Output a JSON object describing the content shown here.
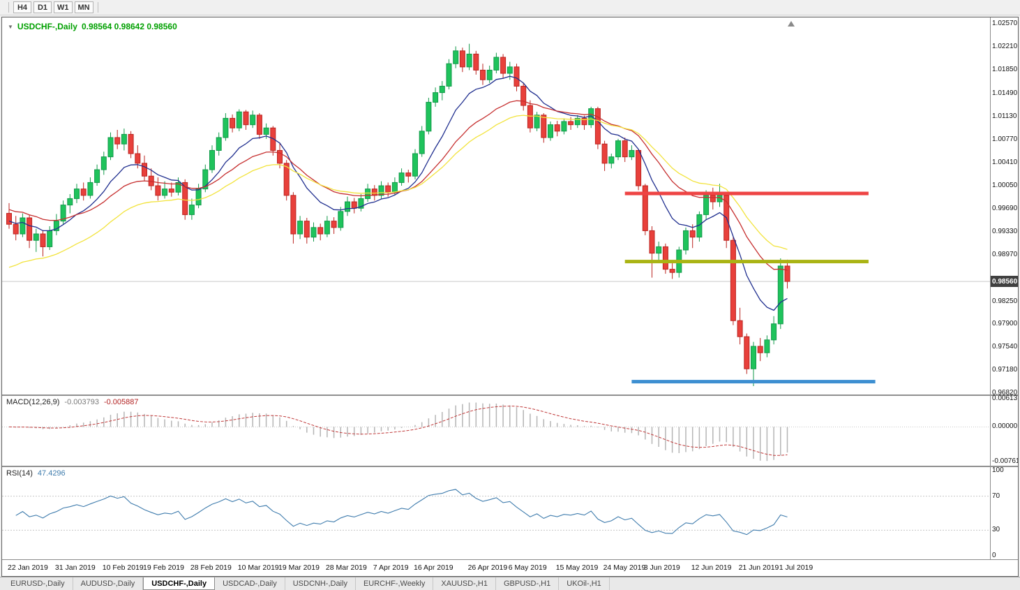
{
  "toolbar": {
    "timeframes": [
      {
        "label": "H4"
      },
      {
        "label": "D1"
      },
      {
        "label": "W1"
      },
      {
        "label": "MN"
      }
    ]
  },
  "chart": {
    "title": {
      "symbol": "USDCHF-,Daily",
      "values": "0.98564 0.98642 0.98560"
    },
    "current_price": "0.98560",
    "price_axis": {
      "max": 1.0267,
      "min": 0.968,
      "labels": [
        "1.02570",
        "1.02210",
        "1.01850",
        "1.01490",
        "1.01130",
        "1.00770",
        "1.00410",
        "1.00050",
        "0.99690",
        "0.99330",
        "0.98970",
        "0.98250",
        "0.97900",
        "0.97540",
        "0.97180",
        "0.96820"
      ]
    },
    "colors": {
      "bull": "#1fc35c",
      "bull_border": "#12994a",
      "bear": "#e8403b",
      "bear_border": "#bb2420",
      "current_price_line": "#c9c9c9"
    },
    "moving_averages": [
      {
        "name": "ma-fast-line",
        "period": 10,
        "seed": 0.995,
        "color": "#202f8f"
      },
      {
        "name": "ma-mid-line",
        "period": 21,
        "seed": 0.9968,
        "color": "#c62f2f"
      },
      {
        "name": "ma-slow-line",
        "period": 30,
        "seed": 0.9878,
        "color": "#f2e33c"
      }
    ],
    "hlines": [
      {
        "name": "resistance-line-red",
        "price": 0.9993,
        "from": 91,
        "to": 127,
        "color": "#ee4444"
      },
      {
        "name": "support-line-olive",
        "price": 0.9887,
        "from": 91,
        "to": 127,
        "color": "#aab414"
      },
      {
        "name": "support-line-blue",
        "price": 0.97,
        "from": 92,
        "to": 128,
        "color": "#3d8fd1"
      }
    ],
    "dates": [
      [
        0,
        "22 Jan 2019"
      ],
      [
        7,
        "31 Jan 2019"
      ],
      [
        14,
        "10 Feb 2019"
      ],
      [
        20,
        "19 Feb 2019"
      ],
      [
        27,
        "28 Feb 2019"
      ],
      [
        34,
        "10 Mar 2019"
      ],
      [
        40,
        "19 Mar 2019"
      ],
      [
        47,
        "28 Mar 2019"
      ],
      [
        54,
        "7 Apr 2019"
      ],
      [
        60,
        "16 Apr 2019"
      ],
      [
        68,
        "26 Apr 2019"
      ],
      [
        74,
        "6 May 2019"
      ],
      [
        81,
        "15 May 2019"
      ],
      [
        88,
        "24 May 2019"
      ],
      [
        94,
        "3 Jun 2019"
      ],
      [
        101,
        "12 Jun 2019"
      ],
      [
        108,
        "21 Jun 2019"
      ],
      [
        114,
        "1 Jul 2019"
      ]
    ],
    "candles": [
      [
        0.9962,
        0.9978,
        0.9938,
        0.9945
      ],
      [
        0.9945,
        0.9958,
        0.992,
        0.993
      ],
      [
        0.993,
        0.9962,
        0.9925,
        0.9955
      ],
      [
        0.9955,
        0.996,
        0.9908,
        0.992
      ],
      [
        0.992,
        0.9938,
        0.9902,
        0.993
      ],
      [
        0.993,
        0.9936,
        0.9895,
        0.991
      ],
      [
        0.991,
        0.9942,
        0.9905,
        0.9935
      ],
      [
        0.9935,
        0.9961,
        0.9928,
        0.995
      ],
      [
        0.995,
        0.9982,
        0.9945,
        0.9975
      ],
      [
        0.9975,
        0.9992,
        0.9962,
        0.9985
      ],
      [
        0.9985,
        1.0008,
        0.9978,
        1.0
      ],
      [
        1.0,
        1.001,
        0.9982,
        0.999
      ],
      [
        0.999,
        1.0018,
        0.9985,
        1.001
      ],
      [
        1.001,
        1.0038,
        1.0005,
        1.003
      ],
      [
        1.003,
        1.0058,
        1.0022,
        1.005
      ],
      [
        1.005,
        1.0088,
        1.0045,
        1.008
      ],
      [
        1.008,
        1.0092,
        1.0062,
        1.007
      ],
      [
        1.007,
        1.0094,
        1.006,
        1.0085
      ],
      [
        1.0085,
        1.009,
        1.0048,
        1.0055
      ],
      [
        1.0055,
        1.0068,
        1.0032,
        1.004
      ],
      [
        1.004,
        1.0052,
        1.0012,
        1.002
      ],
      [
        1.002,
        1.0032,
        0.9998,
        1.0005
      ],
      [
        1.0005,
        1.0018,
        0.9982,
        0.999
      ],
      [
        0.999,
        1.0012,
        0.9985,
        1.0
      ],
      [
        1.0,
        1.001,
        0.9988,
        0.9995
      ],
      [
        0.9995,
        1.0018,
        0.999,
        1.001
      ],
      [
        1.001,
        1.0015,
        0.9952,
        0.996
      ],
      [
        0.996,
        0.9985,
        0.9952,
        0.9975
      ],
      [
        0.9975,
        1.0008,
        0.997,
        1.0
      ],
      [
        1.0,
        1.0038,
        0.9995,
        1.003
      ],
      [
        1.003,
        1.0068,
        1.0025,
        1.006
      ],
      [
        1.006,
        1.0088,
        1.0052,
        1.008
      ],
      [
        1.008,
        1.0118,
        1.0075,
        1.011
      ],
      [
        1.011,
        1.0116,
        1.0088,
        1.0095
      ],
      [
        1.0095,
        1.0124,
        1.009,
        1.012
      ],
      [
        1.012,
        1.0123,
        1.0092,
        1.01
      ],
      [
        1.01,
        1.0122,
        1.0095,
        1.0115
      ],
      [
        1.0115,
        1.0118,
        1.0078,
        1.0085
      ],
      [
        1.0085,
        1.0102,
        1.0078,
        1.0095
      ],
      [
        1.0095,
        1.0098,
        1.0052,
        1.006
      ],
      [
        1.006,
        1.0072,
        1.0032,
        1.004
      ],
      [
        1.004,
        1.0045,
        0.9982,
        0.999
      ],
      [
        0.999,
        0.9995,
        0.9915,
        0.993
      ],
      [
        0.993,
        0.9958,
        0.9922,
        0.995
      ],
      [
        0.995,
        0.9955,
        0.9915,
        0.9925
      ],
      [
        0.9925,
        0.9948,
        0.9918,
        0.994
      ],
      [
        0.994,
        0.9946,
        0.992,
        0.993
      ],
      [
        0.993,
        0.9958,
        0.9925,
        0.995
      ],
      [
        0.995,
        0.9956,
        0.993,
        0.994
      ],
      [
        0.994,
        0.9972,
        0.9935,
        0.9965
      ],
      [
        0.9965,
        0.9988,
        0.9958,
        0.998
      ],
      [
        0.998,
        0.9986,
        0.9962,
        0.997
      ],
      [
        0.997,
        0.9992,
        0.9965,
        0.9985
      ],
      [
        0.9985,
        1.0008,
        0.998,
        1.0
      ],
      [
        1.0,
        1.0006,
        0.9982,
        0.999
      ],
      [
        0.999,
        1.0012,
        0.9985,
        1.0005
      ],
      [
        1.0005,
        1.001,
        0.9988,
        0.9995
      ],
      [
        0.9995,
        1.0018,
        0.999,
        1.001
      ],
      [
        1.001,
        1.0032,
        1.0005,
        1.0025
      ],
      [
        1.0025,
        1.003,
        1.001,
        1.002
      ],
      [
        1.002,
        1.0062,
        1.0015,
        1.0055
      ],
      [
        1.0055,
        1.0098,
        1.005,
        1.009
      ],
      [
        1.009,
        1.0142,
        1.0085,
        1.0135
      ],
      [
        1.0135,
        1.0158,
        1.0128,
        1.015
      ],
      [
        1.015,
        1.0168,
        1.0138,
        1.016
      ],
      [
        1.016,
        1.0202,
        1.0155,
        1.0195
      ],
      [
        1.0195,
        1.0222,
        1.0188,
        1.0215
      ],
      [
        1.0215,
        1.022,
        1.0182,
        1.019
      ],
      [
        1.019,
        1.0226,
        1.0185,
        1.021
      ],
      [
        1.021,
        1.0215,
        1.0178,
        1.0185
      ],
      [
        1.0185,
        1.0195,
        1.0162,
        1.017
      ],
      [
        1.017,
        1.0192,
        1.0165,
        1.0185
      ],
      [
        1.0185,
        1.0212,
        1.018,
        1.0205
      ],
      [
        1.0205,
        1.021,
        1.0172,
        1.018
      ],
      [
        1.018,
        1.0198,
        1.017,
        1.019
      ],
      [
        1.019,
        1.0195,
        1.0152,
        1.016
      ],
      [
        1.016,
        1.0165,
        1.0122,
        1.013
      ],
      [
        1.013,
        1.0138,
        1.0088,
        1.0095
      ],
      [
        1.0095,
        1.012,
        1.009,
        1.0115
      ],
      [
        1.0115,
        1.0118,
        1.0072,
        1.008
      ],
      [
        1.008,
        1.0105,
        1.0075,
        1.01
      ],
      [
        1.01,
        1.0106,
        1.0082,
        1.009
      ],
      [
        1.009,
        1.011,
        1.0085,
        1.0105
      ],
      [
        1.0105,
        1.0112,
        1.0092,
        1.01
      ],
      [
        1.01,
        1.0115,
        1.0095,
        1.011
      ],
      [
        1.011,
        1.0114,
        1.0092,
        1.01
      ],
      [
        1.01,
        1.0128,
        1.0095,
        1.0125
      ],
      [
        1.0125,
        1.0128,
        1.0062,
        1.007
      ],
      [
        1.007,
        1.0075,
        1.0028,
        1.004
      ],
      [
        1.004,
        1.0055,
        1.0032,
        1.005
      ],
      [
        1.005,
        1.0078,
        1.0045,
        1.0075
      ],
      [
        1.0075,
        1.008,
        1.0042,
        1.005
      ],
      [
        1.005,
        1.0068,
        1.0045,
        1.006
      ],
      [
        1.006,
        1.0062,
        0.9998,
        1.0005
      ],
      [
        1.0005,
        1.0008,
        0.9928,
        0.9935
      ],
      [
        0.9935,
        0.9942,
        0.9862,
        0.99
      ],
      [
        0.99,
        0.9918,
        0.9888,
        0.991
      ],
      [
        0.991,
        0.9915,
        0.9868,
        0.9875
      ],
      [
        0.9875,
        0.9888,
        0.986,
        0.987
      ],
      [
        0.987,
        0.991,
        0.9862,
        0.9905
      ],
      [
        0.9905,
        0.994,
        0.9898,
        0.9935
      ],
      [
        0.9935,
        0.9945,
        0.9908,
        0.9925
      ],
      [
        0.9925,
        0.9965,
        0.9918,
        0.996
      ],
      [
        0.996,
        0.9998,
        0.9952,
        0.999
      ],
      [
        0.999,
        1.0002,
        0.9968,
        0.998
      ],
      [
        0.998,
        1.0008,
        0.9972,
        0.999
      ],
      [
        0.999,
        0.9995,
        0.9908,
        0.992
      ],
      [
        0.992,
        0.9925,
        0.9788,
        0.9795
      ],
      [
        0.9795,
        0.9815,
        0.9758,
        0.977
      ],
      [
        0.977,
        0.9775,
        0.9712,
        0.972
      ],
      [
        0.972,
        0.9762,
        0.9693,
        0.9755
      ],
      [
        0.9755,
        0.9768,
        0.9732,
        0.9745
      ],
      [
        0.9745,
        0.9772,
        0.9738,
        0.9765
      ],
      [
        0.9765,
        0.9802,
        0.9758,
        0.979
      ],
      [
        0.979,
        0.9892,
        0.9782,
        0.988
      ],
      [
        0.988,
        0.989,
        0.9845,
        0.9856
      ]
    ]
  },
  "macd": {
    "label": "MACD(12,26,9)",
    "value_main": "-0.003793",
    "value_signal": "-0.005887",
    "range": {
      "max": 0.0068,
      "min": -0.0085
    },
    "axis": [
      {
        "value": 0.00613,
        "label": "0.00613"
      },
      {
        "value": 0,
        "label": "0.00000"
      },
      {
        "value": -0.00761,
        "label": "-0.00761"
      }
    ],
    "histogram_color": "#b5b5b5",
    "signal_color": "#c03a3a"
  },
  "rsi": {
    "label": "RSI(14)",
    "value": "47.4296",
    "period": 14,
    "levels": [
      70,
      30
    ],
    "axis": [
      {
        "value": 100,
        "label": "100"
      },
      {
        "value": 70,
        "label": "70"
      },
      {
        "value": 30,
        "label": "30"
      },
      {
        "value": 0,
        "label": "0"
      }
    ],
    "line_color": "#3f7cad"
  },
  "tabs": [
    {
      "label": "EURUSD-,Daily"
    },
    {
      "label": "AUDUSD-,Daily"
    },
    {
      "label": "USDCHF-,Daily",
      "active": true
    },
    {
      "label": "USDCAD-,Daily"
    },
    {
      "label": "USDCNH-,Daily"
    },
    {
      "label": "EURCHF-,Weekly"
    },
    {
      "label": "XAUUSD-,H1"
    },
    {
      "label": "GBPUSD-,H1"
    },
    {
      "label": "UKOil-,H1"
    }
  ]
}
